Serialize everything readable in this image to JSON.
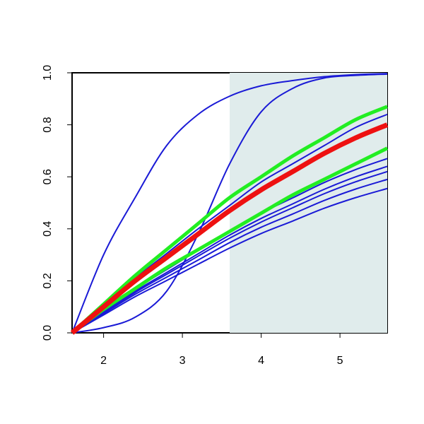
{
  "chart_data": {
    "type": "line",
    "x": [
      1.6,
      2,
      2.4,
      2.8,
      3.2,
      3.6,
      4,
      4.4,
      4.8,
      5.2,
      5.6
    ],
    "xlim": [
      1.6,
      5.6
    ],
    "xticks": [
      2,
      3,
      4,
      5
    ],
    "ylim": [
      0,
      1
    ],
    "yticks": [
      {
        "value": 0,
        "label": "0.0"
      },
      0.2,
      0.4,
      0.6,
      0.8,
      {
        "value": 1,
        "label": "1.0"
      }
    ],
    "shade": {
      "xlim": [
        3.6,
        5.6
      ],
      "color": "#e0ecec"
    },
    "series": [
      {
        "color": "#1a1ad6",
        "width": 2,
        "values": [
          0,
          0.3,
          0.52,
          0.72,
          0.84,
          0.91,
          0.95,
          0.97,
          0.985,
          0.993,
          0.997
        ]
      },
      {
        "color": "#1a1ad6",
        "width": 2,
        "values": [
          0,
          0.02,
          0.06,
          0.16,
          0.38,
          0.65,
          0.85,
          0.94,
          0.98,
          0.99,
          0.995
        ]
      },
      {
        "color": "#1a1ad6",
        "width": 2,
        "values": [
          0,
          0.105,
          0.21,
          0.305,
          0.4,
          0.49,
          0.58,
          0.65,
          0.72,
          0.79,
          0.84
        ]
      },
      {
        "color": "#1a1ad6",
        "width": 2,
        "values": [
          0,
          0.084,
          0.168,
          0.243,
          0.318,
          0.394,
          0.461,
          0.519,
          0.578,
          0.628,
          0.67
        ]
      },
      {
        "color": "#1a1ad6",
        "width": 2,
        "values": [
          0,
          0.08,
          0.16,
          0.232,
          0.304,
          0.376,
          0.44,
          0.496,
          0.552,
          0.6,
          0.64
        ]
      },
      {
        "color": "#1a1ad6",
        "width": 2,
        "values": [
          0,
          0.078,
          0.155,
          0.225,
          0.295,
          0.364,
          0.426,
          0.481,
          0.535,
          0.581,
          0.62
        ]
      },
      {
        "color": "#1a1ad6",
        "width": 2,
        "values": [
          0,
          0.074,
          0.148,
          0.214,
          0.28,
          0.347,
          0.406,
          0.457,
          0.509,
          0.553,
          0.59
        ]
      },
      {
        "color": "#1a1ad6",
        "width": 2,
        "values": [
          0,
          0.069,
          0.139,
          0.201,
          0.264,
          0.326,
          0.382,
          0.43,
          0.479,
          0.52,
          0.555
        ]
      },
      {
        "color": "#22ee22",
        "width": 5,
        "values": [
          0,
          0.11,
          0.22,
          0.32,
          0.42,
          0.52,
          0.6,
          0.68,
          0.75,
          0.82,
          0.87
        ]
      },
      {
        "color": "#22ee22",
        "width": 5,
        "values": [
          0,
          0.09,
          0.17,
          0.25,
          0.32,
          0.39,
          0.46,
          0.53,
          0.59,
          0.65,
          0.71
        ]
      },
      {
        "color": "#ee1111",
        "width": 7,
        "values": [
          0,
          0.1,
          0.2,
          0.29,
          0.38,
          0.47,
          0.55,
          0.62,
          0.69,
          0.75,
          0.8
        ]
      }
    ]
  }
}
